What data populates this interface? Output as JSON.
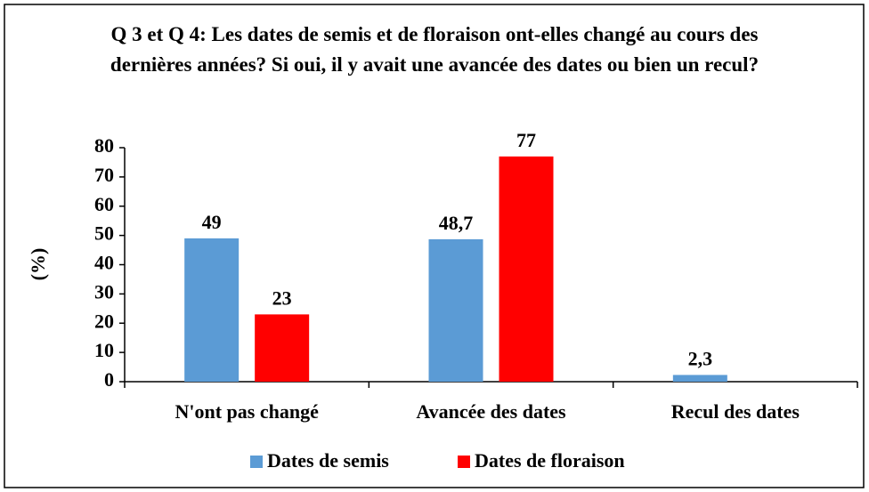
{
  "chart_data": {
    "type": "bar",
    "title": "Q 3 et Q 4: Les dates de semis et de floraison ont-elles changé au cours des dernières années? Si oui, il y avait une avancée des dates ou bien un recul?",
    "ylabel": "(%)",
    "categories": [
      "N'ont pas changé",
      "Avancée des dates",
      "Recul des dates"
    ],
    "series": [
      {
        "name": "Dates de semis",
        "color": "#5b9bd5",
        "values": [
          49,
          48.7,
          2.3
        ],
        "value_labels": [
          "49",
          "48,7",
          "2,3"
        ]
      },
      {
        "name": "Dates de floraison",
        "color": "#ff0000",
        "values": [
          23,
          77,
          null
        ],
        "value_labels": [
          "23",
          "77",
          null
        ]
      }
    ],
    "ylim": [
      0,
      80
    ],
    "yticks": [
      0,
      10,
      20,
      30,
      40,
      50,
      60,
      70,
      80
    ],
    "grid": false,
    "legend": "bottom"
  }
}
